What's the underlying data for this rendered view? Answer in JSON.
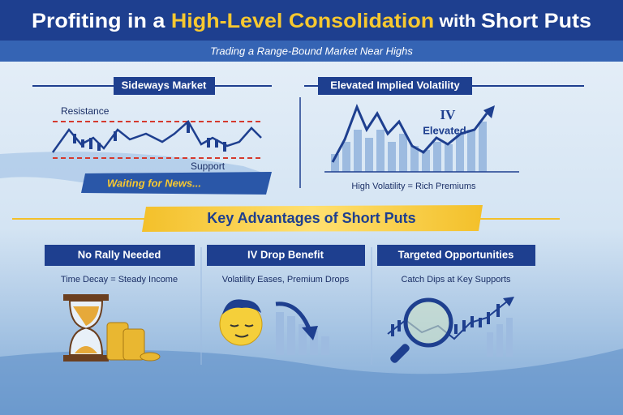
{
  "header": {
    "title_parts": [
      "Profiting in a ",
      "High-Level Consolidation",
      " with ",
      "Short Puts"
    ],
    "subtitle": "Trading a Range-Bound Market Near Highs"
  },
  "panels": [
    {
      "heading": "Sideways Market",
      "resistance": "Resistance",
      "support": "Support",
      "caption": "Waiting for News..."
    },
    {
      "heading": "Elevated Implied Volatility",
      "badge": [
        "IV",
        "Elevated"
      ],
      "caption": "High Volatility = Rich Premiums"
    }
  ],
  "banner": "Key Advantages of Short Puts",
  "cards": [
    {
      "heading": "No Rally Needed",
      "caption": "Time Decay = Steady Income"
    },
    {
      "heading": "IV Drop Benefit",
      "caption": "Volatility Eases, Premium Drops"
    },
    {
      "heading": "Targeted Opportunities",
      "caption": "Catch Dips at Key Supports"
    }
  ]
}
